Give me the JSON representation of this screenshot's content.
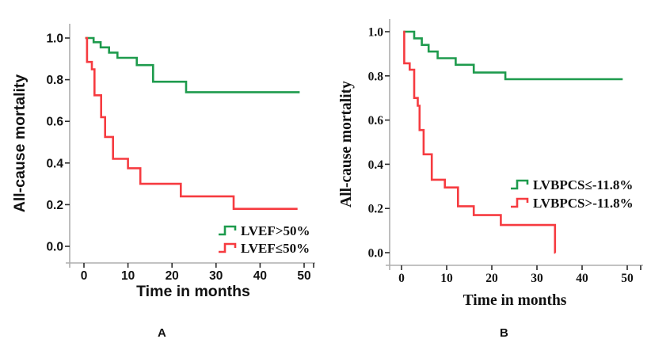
{
  "figure": {
    "background": "#ffffff",
    "captions": {
      "a": "A",
      "b": "B"
    }
  },
  "colors": {
    "green_series": "#1e9b4d",
    "red_series": "#f63b40",
    "axis_line": "#aeaeae",
    "tick_mark": "#2b2b2b",
    "text": "#111111"
  },
  "chart_data": [
    {
      "type": "line",
      "subtype": "kaplan_meier_step",
      "panel_label": "A",
      "title": "",
      "xlabel": "Time in months",
      "ylabel": "All-cause mortality",
      "xticks": [
        0,
        10,
        20,
        30,
        40,
        50
      ],
      "yticks": [
        0.0,
        0.2,
        0.4,
        0.6,
        0.8,
        1.0
      ],
      "ytick_labels": [
        "0.0",
        "0.2",
        "0.4",
        "0.6",
        "0.8",
        "1.0"
      ],
      "xlim": [
        -4,
        52
      ],
      "ylim": [
        0,
        1.05
      ],
      "grid": false,
      "legend_position": "inside lower right",
      "series": [
        {
          "name": "LVEF>50%",
          "color": "#1e9b4d",
          "start": [
            0.3,
            1.0
          ],
          "steps": [
            [
              2.2,
              0.98
            ],
            [
              3.8,
              0.955
            ],
            [
              5.7,
              0.93
            ],
            [
              7.6,
              0.905
            ],
            [
              12.0,
              0.87
            ],
            [
              15.7,
              0.79
            ],
            [
              23.2,
              0.74
            ]
          ],
          "end_t": 49
        },
        {
          "name": "LVEF≤50%",
          "color": "#f63b40",
          "start": [
            0.3,
            1.0
          ],
          "steps": [
            [
              0.7,
              0.885
            ],
            [
              1.8,
              0.85
            ],
            [
              2.4,
              0.725
            ],
            [
              3.9,
              0.62
            ],
            [
              4.8,
              0.525
            ],
            [
              6.6,
              0.42
            ],
            [
              10.0,
              0.375
            ],
            [
              12.8,
              0.3
            ],
            [
              22.0,
              0.24
            ],
            [
              34.0,
              0.18
            ]
          ],
          "end_t": 48.5
        }
      ]
    },
    {
      "type": "line",
      "subtype": "kaplan_meier_step",
      "panel_label": "B",
      "title": "",
      "xlabel": "Time in months",
      "ylabel": "All-cause mortality",
      "xticks": [
        0,
        10,
        20,
        30,
        40,
        50
      ],
      "yticks": [
        0.0,
        0.2,
        0.4,
        0.6,
        0.8,
        1.0
      ],
      "ytick_labels": [
        "0.0",
        "0.2",
        "0.4",
        "0.6",
        "0.8",
        "1.0"
      ],
      "xlim": [
        -4,
        53
      ],
      "ylim": [
        0,
        1.05
      ],
      "grid": false,
      "legend_position": "inside middle right",
      "series": [
        {
          "name": "LVBPCS≤-11.8%",
          "color": "#1e9b4d",
          "start": [
            0.4,
            1.0
          ],
          "steps": [
            [
              2.8,
              0.97
            ],
            [
              4.5,
              0.94
            ],
            [
              6.0,
              0.91
            ],
            [
              8.0,
              0.88
            ],
            [
              12.0,
              0.85
            ],
            [
              16.0,
              0.815
            ],
            [
              23.0,
              0.785
            ]
          ],
          "end_t": 49
        },
        {
          "name": "LVBPCS>-11.8%",
          "color": "#f63b40",
          "start": [
            0.4,
            1.0
          ],
          "steps": [
            [
              0.6,
              0.857
            ],
            [
              1.8,
              0.828
            ],
            [
              2.8,
              0.7
            ],
            [
              3.6,
              0.665
            ],
            [
              4.0,
              0.555
            ],
            [
              4.9,
              0.445
            ],
            [
              6.7,
              0.33
            ],
            [
              9.6,
              0.295
            ],
            [
              12.5,
              0.21
            ],
            [
              16.0,
              0.17
            ],
            [
              22.0,
              0.125
            ],
            [
              34.0,
              0.0
            ]
          ],
          "end_t": 34.1
        }
      ]
    }
  ]
}
